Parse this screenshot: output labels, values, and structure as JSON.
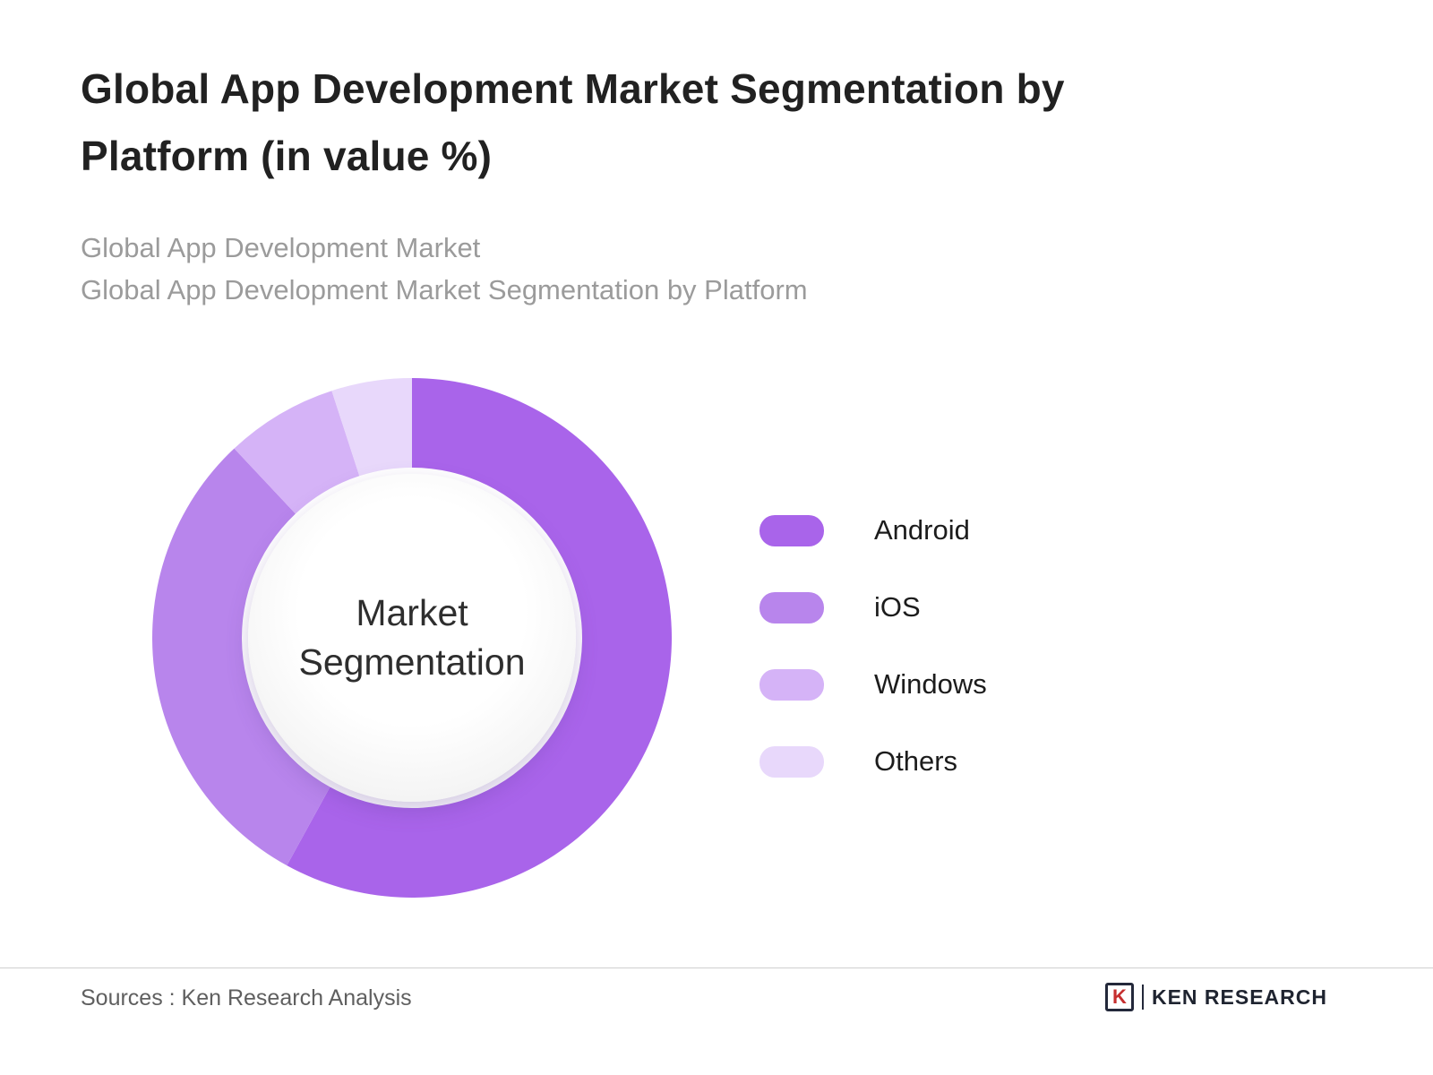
{
  "header": {
    "title": "Global App Development Market Segmentation by Platform (in value %)",
    "subtitle_line1": "Global App Development Market",
    "subtitle_line2": "Global App Development Market Segmentation by Platform"
  },
  "chart_data": {
    "type": "pie",
    "subtype": "donut",
    "title": "Global App Development Market Segmentation by Platform (in value %)",
    "center_label": "Market Segmentation",
    "categories": [
      "Android",
      "iOS",
      "Windows",
      "Others"
    ],
    "values": [
      58,
      30,
      7,
      5
    ],
    "unit": "value %",
    "colors": [
      "#a964ea",
      "#b885ec",
      "#d5b3f7",
      "#e8d8fb"
    ],
    "legend_position": "right",
    "start_angle_deg": 0,
    "direction": "clockwise",
    "data_labels_shown": false
  },
  "footer": {
    "sources": "Sources : Ken Research Analysis",
    "logo_mark": "K",
    "logo_text": "KEN RESEARCH"
  }
}
